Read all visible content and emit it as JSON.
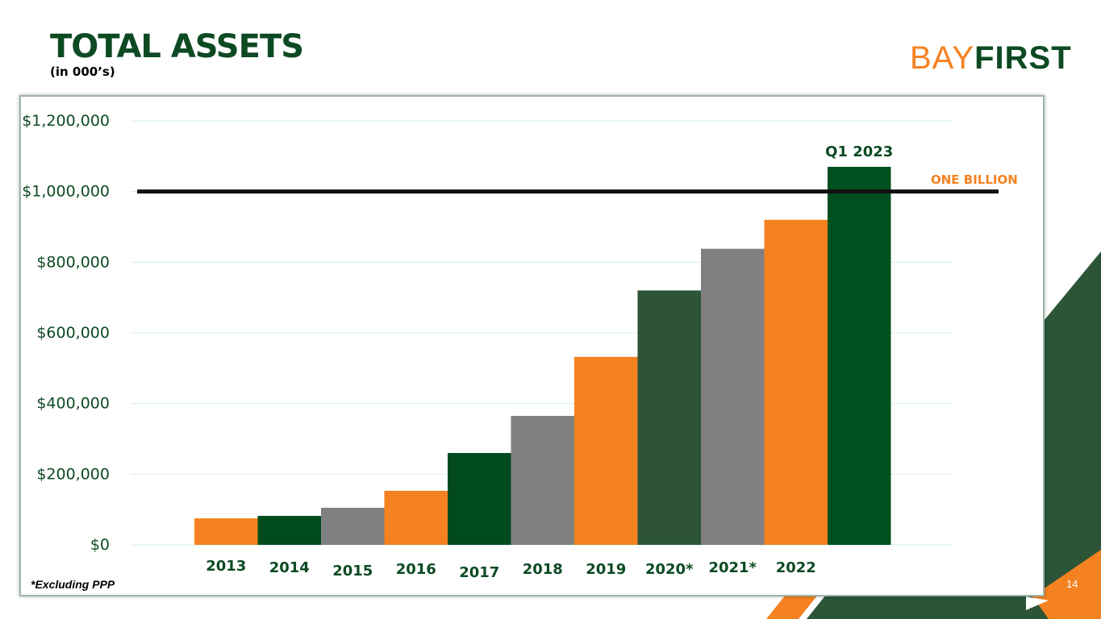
{
  "slide": {
    "title": "TOTAL ASSETS",
    "subtitle": "(in 000’s)",
    "logo_part1": "BAY",
    "logo_part2": "FIRST",
    "footnote": "*Excluding PPP",
    "page_number": "14"
  },
  "colors": {
    "dark_green": "#0d4a23",
    "orange": "#f58220",
    "gray": "#808080",
    "mid_green": "#2c5538",
    "bright_green": "#0a5a26",
    "title_green": "#0d4a23"
  },
  "chart_data": {
    "type": "bar",
    "title": "TOTAL ASSETS",
    "ylabel": "",
    "xlabel": "",
    "ylim": [
      0,
      1200000
    ],
    "yticks": [
      0,
      200000,
      400000,
      600000,
      800000,
      1000000,
      1200000
    ],
    "ytick_labels": [
      "$0",
      "$200,000",
      "$400,000",
      "$600,000",
      "$800,000",
      "$1,000,000",
      "$1,200,000"
    ],
    "categories": [
      "2013",
      "2014",
      "2015",
      "2016",
      "2017",
      "2018",
      "2019",
      "2020*",
      "2021*",
      "2022",
      "Q1 2023"
    ],
    "values": [
      75000,
      82000,
      105000,
      153000,
      260000,
      365000,
      532000,
      720000,
      838000,
      920000,
      1070000
    ],
    "bar_colors": [
      "#f58220",
      "#004a1e",
      "#808080",
      "#f58220",
      "#004a1e",
      "#808080",
      "#f58220",
      "#2d5438",
      "#808080",
      "#f58220",
      "#00501f"
    ],
    "reference_line": {
      "value": 1000000,
      "label": "ONE BILLION",
      "color": "#111111",
      "label_color": "#f58220"
    },
    "grid": true
  }
}
